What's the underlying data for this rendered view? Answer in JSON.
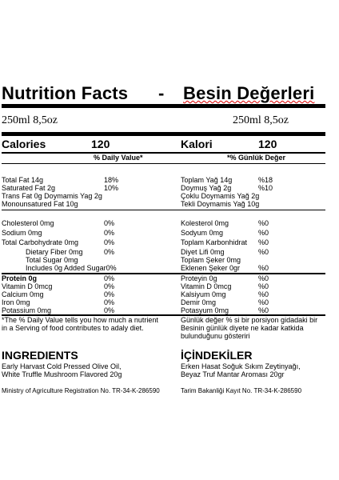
{
  "title": {
    "left": "Nutrition Facts",
    "dash": "-",
    "right": "Besin Değerleri"
  },
  "serving": {
    "left": "250ml 8,5oz",
    "right": "250ml 8,5oz"
  },
  "calories": {
    "left_label": "Calories",
    "left_value": "120",
    "right_label": "Kalori",
    "right_value": "120"
  },
  "daily_value": {
    "left": "% Daily Value*",
    "right": "*% Günlük Değer"
  },
  "fat_rows": [
    {
      "left_label": "Total Fat 14g",
      "left_pct": "18%",
      "right_label": "Toplam Yağ 14g",
      "right_pct": "%18",
      "bold": true
    },
    {
      "left_label": "Saturated Fat 2g",
      "left_pct": "10%",
      "right_label": "Doymuş Yağ 2g",
      "right_pct": "%10",
      "bold": false
    },
    {
      "left_label": "Trans Fat 0g Doymamis Yag 2g",
      "left_pct": "",
      "right_label": "Çoklu Doymamis Yağ 2g",
      "right_pct": "",
      "bold": false
    },
    {
      "left_label": "Monounsatured Fat 10g",
      "left_pct": "",
      "right_label": "Tekli Doymamis Yağ 10g",
      "right_pct": "",
      "bold": false
    }
  ],
  "mid_rows": [
    {
      "left_label": "Cholesterol 0mg",
      "left_pct": "0%",
      "right_label": "Kolesterol 0mg",
      "right_pct": "%0",
      "indent": false
    },
    {
      "left_label": "Sodium 0mg",
      "left_pct": "0%",
      "right_label": "Sodyum 0mg",
      "right_pct": "%0",
      "indent": false
    },
    {
      "left_label": "Total Carbohydrate 0mg",
      "left_pct": "0%",
      "right_label": "Toplam Karbonhidrat",
      "right_pct": "%0",
      "indent": false
    },
    {
      "left_label": "Dietary Fiber 0mg",
      "left_pct": "0%",
      "right_label": "Diyet Lifi 0mg",
      "right_pct": "%0",
      "indent": true
    },
    {
      "left_label": "Total Sugar 0mg",
      "left_pct": "",
      "right_label": "Toplam Şeker 0mg",
      "right_pct": "",
      "indent": true
    },
    {
      "left_label": "Includes 0g Added Sugar0%",
      "left_pct": "",
      "right_label": "Eklenen Şeker 0gr",
      "right_pct": "%0",
      "indent": true
    }
  ],
  "min_rows": [
    {
      "left_label": "Protein 0g",
      "left_pct": "0%",
      "right_label": "Proteyin 0g",
      "right_pct": "%0",
      "bold": true
    },
    {
      "left_label": "Vitamin D 0mcg",
      "left_pct": "0%",
      "right_label": "Vitamin D 0mcg",
      "right_pct": "%0",
      "bold": false
    },
    {
      "left_label": "Calcium 0mg",
      "left_pct": "0%",
      "right_label": "Kalsiyum 0mg",
      "right_pct": "%0",
      "bold": false
    },
    {
      "left_label": "Iron 0mg",
      "left_pct": "0%",
      "right_label": "Demir 0mg",
      "right_pct": "%0",
      "bold": false
    },
    {
      "left_label": "Potassium 0mg",
      "left_pct": "0%",
      "right_label": "Potasyum 0mg",
      "right_pct": "%0",
      "bold": false
    }
  ],
  "footnote": {
    "left_1": "*The % Daily Value tells you how much a nutrient",
    "left_2": "in a Serving of food contributes to adaly diet.",
    "right_1": "Günlük değer % si bir porsiyon gidadaki bir",
    "right_2": "Besinin günlük diyete ne kadar katkida",
    "right_3": "bulunduğunu gösteriri"
  },
  "ingredients": {
    "left_heading": "INGREDIENTS",
    "left_1": "Early Harvast Cold Pressed Olive Oil,",
    "left_2": "White Truffle Mushroom Flavored 20g",
    "right_heading": "İÇİNDEKİLER",
    "right_1": "Erken Hasat Soğuk Sıkım Zeytinyağı,",
    "right_2": "Beyaz Truf Mantar Aroması 20gr"
  },
  "registration": {
    "left": "Ministry of Agriculture Registration No. TR-34-K-286590",
    "right": "Tarim Bakanliği Kayıt No. TR-34-K-286590"
  }
}
